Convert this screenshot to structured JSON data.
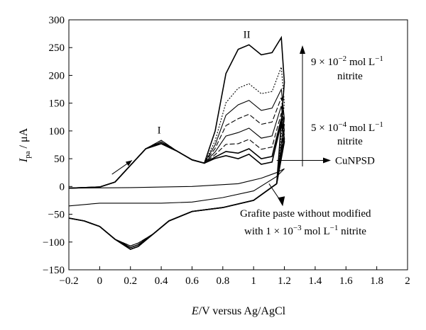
{
  "chart_data": {
    "type": "line",
    "xlabel_italic": "E",
    "xlabel_rest": "/V versus Ag/AgCl",
    "ylabel_italic": "I",
    "ylabel_sub": "pa",
    "ylabel_slash": " / ",
    "ylabel_unit": "μA",
    "xlim": [
      -0.2,
      2
    ],
    "ylim": [
      -150,
      300
    ],
    "x_ticks": [
      -0.2,
      0,
      0.2,
      0.4,
      0.6,
      0.8,
      1,
      1.2,
      1.4,
      1.6,
      1.8,
      2
    ],
    "x_tick_labels": [
      "−0.2",
      "0",
      "0.2",
      "0.4",
      "0.6",
      "0.8",
      "1",
      "1.2",
      "1.4",
      "1.6",
      "1.8",
      "2"
    ],
    "y_ticks": [
      -150,
      -100,
      -50,
      0,
      50,
      100,
      150,
      200,
      250,
      300
    ],
    "y_tick_labels": [
      "−150",
      "−100",
      "−50",
      "0",
      "50",
      "100",
      "150",
      "200",
      "250",
      "300"
    ],
    "grid": false,
    "peak_I_label": "I",
    "peak_II_label": "II",
    "high_conc": {
      "base": "9 × 10",
      "exp": "−2",
      "unit": " mol L",
      "unit_exp": "−1",
      "line2": "nitrite"
    },
    "low_conc": {
      "base": "5 × 10",
      "exp": "−4",
      "unit": " mol L",
      "unit_exp": "−1",
      "line2": "nitrite"
    },
    "cunpsd_label": "CuNPSD",
    "grafite_line1": "Grafite paste without modified",
    "grafite_line2": {
      "prefix": "with 1 × 10",
      "exp": "−3",
      "unit": " mol L",
      "unit_exp": "−1",
      "suffix": " nitrite"
    },
    "series": [
      {
        "peak": 255,
        "end": 268,
        "style": "bold"
      },
      {
        "peak": 185,
        "end": 215,
        "style": "dotted"
      },
      {
        "peak": 155,
        "end": 175,
        "style": "thin"
      },
      {
        "peak": 130,
        "end": 160,
        "style": "dashed"
      },
      {
        "peak": 105,
        "end": 145,
        "style": "thin"
      },
      {
        "peak": 85,
        "end": 132,
        "style": "dashed"
      },
      {
        "peak": 68,
        "end": 122,
        "style": "bold"
      },
      {
        "peak": 58,
        "end": 115,
        "style": "bold"
      }
    ],
    "anodic_peak_I": {
      "x": 0.4,
      "y": 80
    },
    "cathodic_peak": {
      "x": 0.2,
      "y": -110
    },
    "grafite_curve": {
      "x_end": 1.2,
      "y_end": 32
    }
  }
}
